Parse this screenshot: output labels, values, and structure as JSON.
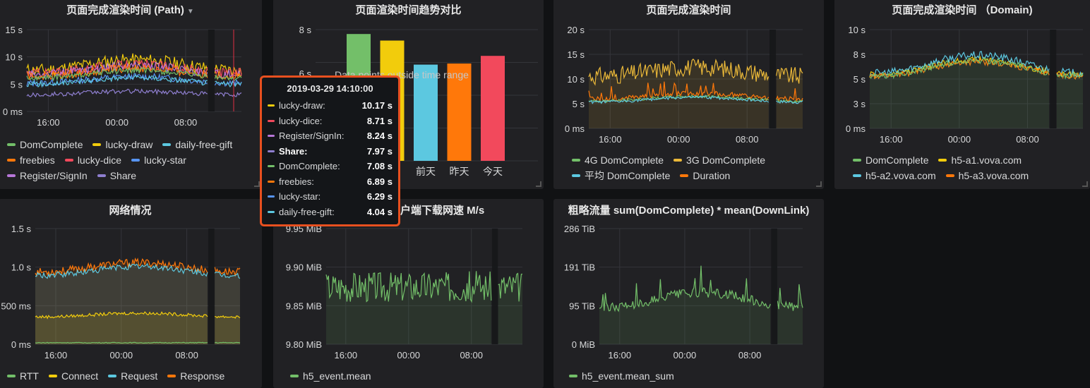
{
  "colors": {
    "green": "#73bf69",
    "yellow": "#f2cc0c",
    "cyan": "#5cc8e0",
    "orange": "#ff780a",
    "red": "#f2495c",
    "blue": "#5794f2",
    "magenta": "#b877d9",
    "purple": "#8f7fd0",
    "fadedgreen": "#7eb26d",
    "gold": "#eab839"
  },
  "panels": {
    "p1": {
      "title": "页面完成渲染时间 (Path)",
      "menu_icon": "caret-down-icon",
      "legend": [
        {
          "name": "DomComplete",
          "color": "green"
        },
        {
          "name": "lucky-draw",
          "color": "yellow"
        },
        {
          "name": "daily-free-gift",
          "color": "cyan"
        },
        {
          "name": "freebies",
          "color": "orange"
        },
        {
          "name": "lucky-dice",
          "color": "red"
        },
        {
          "name": "lucky-star",
          "color": "blue"
        },
        {
          "name": "Register/SignIn",
          "color": "magenta"
        },
        {
          "name": "Share",
          "color": "purple"
        }
      ]
    },
    "p2": {
      "title": "页面渲染时间趋势对比",
      "overlay": "Data points outside time range"
    },
    "p3": {
      "title": "页面完成渲染时间",
      "legend": [
        {
          "name": "4G DomComplete",
          "color": "green"
        },
        {
          "name": "3G DomComplete",
          "color": "gold"
        },
        {
          "name": "平均 DomComplete",
          "color": "cyan"
        },
        {
          "name": "Duration",
          "color": "orange"
        }
      ]
    },
    "p4": {
      "title": "页面完成渲染时间 （Domain)",
      "legend": [
        {
          "name": "DomComplete",
          "color": "green"
        },
        {
          "name": "h5-a1.vova.com",
          "color": "yellow"
        },
        {
          "name": "h5-a2.vova.com",
          "color": "cyan"
        },
        {
          "name": "h5-a3.vova.com",
          "color": "orange"
        }
      ]
    },
    "p5": {
      "title": "网络情况",
      "legend": [
        {
          "name": "RTT",
          "color": "green"
        },
        {
          "name": "Connect",
          "color": "yellow"
        },
        {
          "name": "Request",
          "color": "cyan"
        },
        {
          "name": "Response",
          "color": "orange"
        }
      ]
    },
    "p6": {
      "title": "客户端下载网速 M/s",
      "title_visible": "户端下载网速 M/s",
      "legend": [
        {
          "name": "h5_event.mean",
          "color": "green"
        }
      ]
    },
    "p7": {
      "title": "粗略流量 sum(DomComplete) * mean(DownLink)",
      "legend": [
        {
          "name": "h5_event.mean_sum",
          "color": "green"
        }
      ]
    }
  },
  "tooltip": {
    "time": "2019-03-29 14:10:00",
    "rows": [
      {
        "name": "lucky-draw:",
        "value": "10.17 s",
        "color": "yellow",
        "bold": false
      },
      {
        "name": "lucky-dice:",
        "value": "8.71 s",
        "color": "red",
        "bold": false
      },
      {
        "name": "Register/SignIn:",
        "value": "8.24 s",
        "color": "magenta",
        "bold": false
      },
      {
        "name": "Share:",
        "value": "7.97 s",
        "color": "purple",
        "bold": true
      },
      {
        "name": "DomComplete:",
        "value": "7.08 s",
        "color": "green",
        "bold": false
      },
      {
        "name": "freebies:",
        "value": "6.89 s",
        "color": "orange",
        "bold": false
      },
      {
        "name": "lucky-star:",
        "value": "6.29 s",
        "color": "blue",
        "bold": false
      },
      {
        "name": "daily-free-gift:",
        "value": "4.04 s",
        "color": "cyan",
        "bold": false
      }
    ]
  },
  "chart_data": [
    {
      "id": "p1",
      "type": "line",
      "title": "页面完成渲染时间 (Path)",
      "x_ticks": [
        "16:00",
        "00:00",
        "08:00"
      ],
      "y_ticks": [
        "0 ms",
        "5 s",
        "10 s",
        "15 s"
      ],
      "ylim": [
        0,
        15
      ],
      "series": [
        {
          "name": "lucky-draw",
          "color": "yellow",
          "base": 8.5,
          "amp": 1.6,
          "noise": 1.2
        },
        {
          "name": "lucky-dice",
          "color": "red",
          "base": 7.8,
          "amp": 1.3,
          "noise": 0.9
        },
        {
          "name": "Register/SignIn",
          "color": "magenta",
          "base": 7.6,
          "amp": 1.3,
          "noise": 0.8
        },
        {
          "name": "freebies",
          "color": "orange",
          "base": 7.2,
          "amp": 1.2,
          "noise": 0.8
        },
        {
          "name": "DomComplete",
          "color": "green",
          "base": 6.8,
          "amp": 1.2,
          "noise": 0.5
        },
        {
          "name": "lucky-star",
          "color": "blue",
          "base": 5.8,
          "amp": 1.0,
          "noise": 0.6
        },
        {
          "name": "daily-free-gift",
          "color": "cyan",
          "base": 5.6,
          "amp": 1.0,
          "noise": 0.5
        },
        {
          "name": "Share",
          "color": "purple",
          "base": 3.4,
          "amp": 0.5,
          "noise": 0.4
        }
      ]
    },
    {
      "id": "p2",
      "type": "bar",
      "title": "页面渲染时间趋势对比",
      "categories": [
        "",
        "",
        "前天",
        "昨天",
        "今天"
      ],
      "values": [
        7.8,
        7.5,
        6.4,
        6.45,
        6.8
      ],
      "colors": [
        "#73bf69",
        "#f2cc0c",
        "#5cc8e0",
        "#ff780a",
        "#f2495c"
      ],
      "y_ticks": [
        "6 s",
        "8 s"
      ],
      "ylim": [
        2,
        8
      ]
    },
    {
      "id": "p3",
      "type": "line",
      "title": "页面完成渲染时间",
      "x_ticks": [
        "16:00",
        "00:00",
        "08:00"
      ],
      "y_ticks": [
        "0 ms",
        "5 s",
        "10 s",
        "15 s",
        "20 s"
      ],
      "ylim": [
        0,
        20
      ],
      "series": [
        {
          "name": "3G DomComplete",
          "color": "gold",
          "base": 11.5,
          "amp": 1.5,
          "noise": 1.8,
          "area": true
        },
        {
          "name": "Duration",
          "color": "orange",
          "base": 6.5,
          "amp": 1.0,
          "noise": 0.5,
          "spikes": true
        },
        {
          "name": "4G DomComplete",
          "color": "green",
          "base": 6.0,
          "amp": 0.8,
          "noise": 0.3
        },
        {
          "name": "平均 DomComplete",
          "color": "cyan",
          "base": 5.8,
          "amp": 0.8,
          "noise": 0.3
        }
      ]
    },
    {
      "id": "p4",
      "type": "line",
      "title": "页面完成渲染时间 （Domain)",
      "x_ticks": [
        "16:00",
        "00:00",
        "08:00"
      ],
      "y_ticks": [
        "0 ms",
        "3 s",
        "5 s",
        "8 s",
        "10 s"
      ],
      "ylim": [
        0,
        10
      ],
      "series": [
        {
          "name": "h5-a1.vova.com",
          "color": "yellow",
          "base": 6.2,
          "amp": 1.3,
          "noise": 0.3
        },
        {
          "name": "h5-a2.vova.com",
          "color": "cyan",
          "base": 6.5,
          "amp": 1.5,
          "noise": 0.4
        },
        {
          "name": "h5-a3.vova.com",
          "color": "orange",
          "base": 6.0,
          "amp": 1.2,
          "noise": 0.3
        },
        {
          "name": "DomComplete",
          "color": "green",
          "base": 6.1,
          "amp": 1.3,
          "noise": 0.3,
          "area": true
        }
      ]
    },
    {
      "id": "p5",
      "type": "line",
      "title": "网络情况",
      "x_ticks": [
        "16:00",
        "00:00",
        "08:00"
      ],
      "y_ticks": [
        "0 ms",
        "500 ms",
        "1.0 s",
        "1.5 s"
      ],
      "ylim": [
        0,
        1.5
      ],
      "series": [
        {
          "name": "Response",
          "color": "orange",
          "base": 1.0,
          "amp": 0.1,
          "noise": 0.05,
          "area": true
        },
        {
          "name": "Request",
          "color": "cyan",
          "base": 0.95,
          "amp": 0.1,
          "noise": 0.04,
          "area": true
        },
        {
          "name": "Connect",
          "color": "yellow",
          "base": 0.38,
          "amp": 0.04,
          "noise": 0.02,
          "area": true
        },
        {
          "name": "RTT",
          "color": "green",
          "base": 0.02,
          "amp": 0.0,
          "noise": 0.005
        }
      ]
    },
    {
      "id": "p6",
      "type": "line",
      "title": "客户端下载网速 M/s",
      "x_ticks": [
        "16:00",
        "00:00",
        "08:00"
      ],
      "y_ticks": [
        "9.80 MiB",
        "9.85 MiB",
        "9.90 MiB",
        "9.95 MiB"
      ],
      "ylim": [
        9.8,
        9.95
      ],
      "series": [
        {
          "name": "h5_event.mean",
          "color": "green",
          "base": 9.875,
          "amp": 0.0,
          "noise": 0.02,
          "area": true
        }
      ]
    },
    {
      "id": "p7",
      "type": "line",
      "title": "粗略流量 sum(DomComplete) * mean(DownLink)",
      "x_ticks": [
        "16:00",
        "00:00",
        "08:00"
      ],
      "y_ticks": [
        "0 MiB",
        "95 TiB",
        "191 TiB",
        "286 TiB"
      ],
      "ylim": [
        0,
        286
      ],
      "series": [
        {
          "name": "h5_event.mean_sum",
          "color": "green",
          "base": 110,
          "amp": 30,
          "noise": 12,
          "area": true,
          "spikes": true
        }
      ]
    }
  ]
}
